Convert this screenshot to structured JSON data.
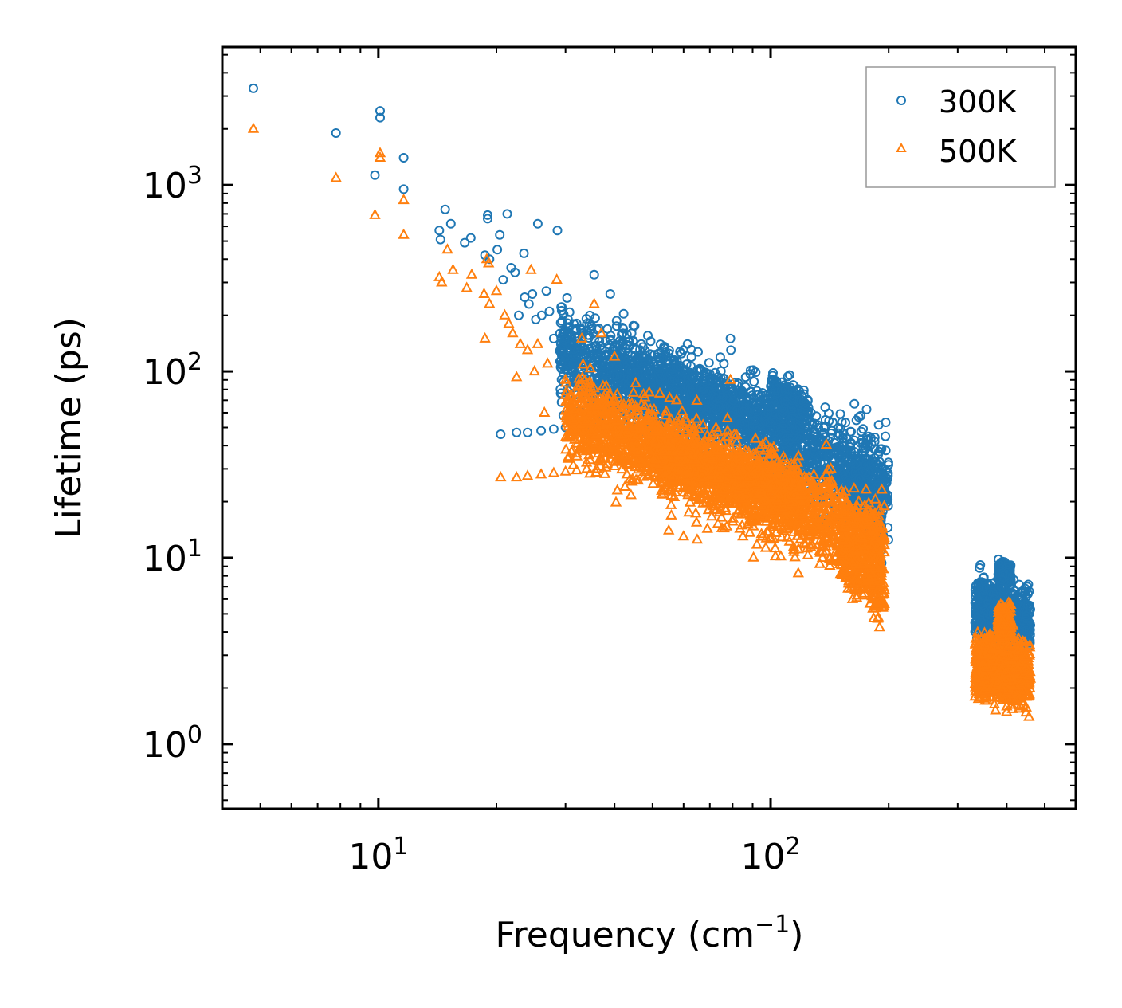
{
  "chart_data": {
    "type": "scatter",
    "title": "",
    "xlabel": "Frequency (cm",
    "xlabel_sup": "−1",
    "xlabel_tail": ")",
    "ylabel": "Lifetime (ps)",
    "xscale": "log",
    "yscale": "log",
    "xlim": [
      4.0,
      600
    ],
    "ylim": [
      0.45,
      5500
    ],
    "x_ticks": [
      {
        "value": 10,
        "base": "10",
        "exp": "1"
      },
      {
        "value": 100,
        "base": "10",
        "exp": "2"
      }
    ],
    "y_ticks": [
      {
        "value": 1,
        "base": "10",
        "exp": "0"
      },
      {
        "value": 10,
        "base": "10",
        "exp": "1"
      },
      {
        "value": 100,
        "base": "10",
        "exp": "2"
      },
      {
        "value": 1000,
        "base": "10",
        "exp": "3"
      }
    ],
    "legend_position": "top-right",
    "series": [
      {
        "name": "300K",
        "marker": "circle",
        "color": "#1f77b4",
        "points": [
          [
            4.8,
            3300
          ],
          [
            7.8,
            1900
          ],
          [
            9.8,
            1130
          ],
          [
            10.1,
            2500
          ],
          [
            10.1,
            2300
          ],
          [
            11.6,
            1400
          ],
          [
            11.6,
            950
          ],
          [
            14.3,
            570
          ],
          [
            14.4,
            510
          ],
          [
            14.8,
            740
          ],
          [
            15.3,
            620
          ],
          [
            16.6,
            490
          ],
          [
            17.2,
            520
          ],
          [
            18.7,
            420
          ],
          [
            19.0,
            690
          ],
          [
            19.0,
            660
          ],
          [
            19.2,
            400
          ],
          [
            20.1,
            450
          ],
          [
            20.4,
            540
          ],
          [
            20.8,
            310
          ],
          [
            21.3,
            700
          ],
          [
            21.8,
            360
          ],
          [
            22.3,
            340
          ],
          [
            22.8,
            200
          ],
          [
            23.5,
            430
          ],
          [
            23.6,
            250
          ],
          [
            24.2,
            230
          ],
          [
            24.7,
            260
          ],
          [
            25.5,
            620
          ],
          [
            25.2,
            190
          ],
          [
            26.1,
            200
          ],
          [
            26.8,
            270
          ],
          [
            27.3,
            210
          ],
          [
            28.0,
            150
          ],
          [
            28.6,
            570
          ],
          [
            29.2,
            140
          ],
          [
            30.5,
            130
          ],
          [
            31.5,
            180
          ],
          [
            33.0,
            160
          ],
          [
            34.5,
            180
          ],
          [
            35.5,
            330
          ],
          [
            36.5,
            170
          ],
          [
            39.0,
            260
          ],
          [
            40.5,
            175
          ],
          [
            42.0,
            160
          ],
          [
            55.0,
            125
          ],
          [
            79.0,
            150
          ],
          [
            79.2,
            130
          ],
          [
            76.0,
            110
          ],
          [
            20.5,
            46
          ],
          [
            22.5,
            47
          ],
          [
            24.0,
            47
          ],
          [
            26.0,
            48
          ],
          [
            28.0,
            49
          ],
          [
            30.0,
            50
          ],
          [
            32.0,
            51
          ],
          [
            34.0,
            52
          ],
          [
            36.0,
            53
          ],
          [
            38.0,
            55
          ],
          [
            40.0,
            56
          ],
          [
            43.0,
            57
          ],
          [
            46.0,
            58
          ]
        ],
        "clusters": [
          {
            "x": [
              29,
              200
            ],
            "y_center": [
              130,
              25
            ],
            "y_spread": 2.2,
            "n": 1800
          },
          {
            "x": [
              40,
              120
            ],
            "y_center": [
              100,
              45
            ],
            "y_spread": 1.6,
            "n": 700
          },
          {
            "x": [
              100,
              125
            ],
            "y_center": [
              80,
              60
            ],
            "y_spread": 1.3,
            "n": 150
          },
          {
            "x": [
              160,
              192
            ],
            "y_center": [
              25,
              15
            ],
            "y_spread": 1.7,
            "n": 300
          },
          {
            "x": [
              332,
              460
            ],
            "y_center": [
              5.5,
              4.5
            ],
            "y_spread": 1.6,
            "n": 650
          },
          {
            "x": [
              380,
              410
            ],
            "y_center": [
              8.5,
              8.0
            ],
            "y_spread": 1.2,
            "n": 150
          }
        ]
      },
      {
        "name": "500K",
        "marker": "triangle",
        "color": "#ff7f0e",
        "points": [
          [
            4.8,
            2000
          ],
          [
            7.8,
            1090
          ],
          [
            9.8,
            690
          ],
          [
            10.1,
            1480
          ],
          [
            10.1,
            1400
          ],
          [
            11.6,
            830
          ],
          [
            11.6,
            540
          ],
          [
            14.3,
            320
          ],
          [
            14.5,
            300
          ],
          [
            15.0,
            450
          ],
          [
            15.5,
            350
          ],
          [
            16.8,
            280
          ],
          [
            17.3,
            330
          ],
          [
            18.6,
            260
          ],
          [
            18.9,
            400
          ],
          [
            19.1,
            380
          ],
          [
            19.2,
            230
          ],
          [
            18.7,
            150
          ],
          [
            20.0,
            270
          ],
          [
            21.0,
            200
          ],
          [
            21.5,
            180
          ],
          [
            22.0,
            160
          ],
          [
            22.5,
            93
          ],
          [
            23.0,
            140
          ],
          [
            24.0,
            130
          ],
          [
            24.5,
            350
          ],
          [
            25.0,
            100
          ],
          [
            25.5,
            140
          ],
          [
            26.5,
            60
          ],
          [
            27.0,
            110
          ],
          [
            28.5,
            310
          ],
          [
            30.0,
            90
          ],
          [
            33.0,
            150
          ],
          [
            35.5,
            230
          ],
          [
            37.0,
            160
          ],
          [
            40.0,
            120
          ],
          [
            79.0,
            90
          ],
          [
            20.5,
            27
          ],
          [
            22.5,
            27
          ],
          [
            24.0,
            27.5
          ],
          [
            26.0,
            28
          ],
          [
            28.0,
            28.5
          ],
          [
            30.0,
            29
          ],
          [
            32.0,
            29.5
          ],
          [
            34.0,
            30
          ],
          [
            36.0,
            30
          ],
          [
            38.0,
            30.5
          ],
          [
            40.0,
            31
          ],
          [
            43.0,
            31.5
          ],
          [
            46.0,
            32
          ],
          [
            55.0,
            14
          ],
          [
            60.0,
            13
          ],
          [
            65.0,
            12.5
          ],
          [
            85.0,
            13
          ],
          [
            100.0,
            12.5
          ]
        ],
        "clusters": [
          {
            "x": [
              30,
              195
            ],
            "y_center": [
              60,
              12
            ],
            "y_spread": 2.0,
            "n": 1900
          },
          {
            "x": [
              50,
              120
            ],
            "y_center": [
              38,
              22
            ],
            "y_spread": 1.5,
            "n": 800
          },
          {
            "x": [
              150,
              195
            ],
            "y_center": [
              12,
              7
            ],
            "y_spread": 1.8,
            "n": 300
          },
          {
            "x": [
              332,
              460
            ],
            "y_center": [
              2.6,
              2.4
            ],
            "y_spread": 1.7,
            "n": 700
          },
          {
            "x": [
              380,
              410
            ],
            "y_center": [
              4.5,
              4.5
            ],
            "y_spread": 1.3,
            "n": 150
          }
        ]
      }
    ]
  }
}
